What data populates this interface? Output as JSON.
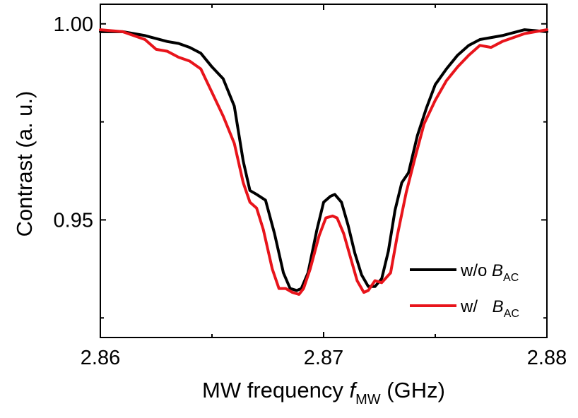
{
  "chart_data": {
    "type": "line",
    "xlabel": {
      "main": "MW frequency ",
      "var": "f",
      "sub": "MW",
      "unit": " (GHz)"
    },
    "ylabel": "Contrast (a. u.)",
    "xlim": [
      2.86,
      2.88
    ],
    "ylim": [
      0.92,
      1.005
    ],
    "xticks": [
      2.86,
      2.87,
      2.88
    ],
    "xtick_labels": [
      "2.86",
      "2.87",
      "2.88"
    ],
    "yticks": [
      0.95,
      1.0
    ],
    "ytick_labels": [
      "0.95",
      "1.00"
    ],
    "grid": false,
    "legend_position": "lower-right",
    "series": [
      {
        "name": "w/o B_AC",
        "legend_prefix": "w/o ",
        "legend_var": "B",
        "legend_sub": "AC",
        "color": "#000000",
        "x": [
          2.86,
          2.861,
          2.862,
          2.863,
          2.8635,
          2.864,
          2.8645,
          2.865,
          2.8655,
          2.866,
          2.8664,
          2.8667,
          2.867,
          2.8674,
          2.8678,
          2.8682,
          2.8685,
          2.8688,
          2.869,
          2.8693,
          2.8697,
          2.87,
          2.8703,
          2.8705,
          2.8708,
          2.8711,
          2.8714,
          2.8717,
          2.872,
          2.8723,
          2.8726,
          2.8729,
          2.8732,
          2.8735,
          2.8738,
          2.8742,
          2.8746,
          2.875,
          2.8755,
          2.876,
          2.8765,
          2.877,
          2.878,
          2.879,
          2.88
        ],
        "values": [
          0.998,
          0.998,
          0.997,
          0.9955,
          0.995,
          0.994,
          0.9925,
          0.989,
          0.986,
          0.979,
          0.965,
          0.9575,
          0.9565,
          0.955,
          0.9465,
          0.9365,
          0.9325,
          0.932,
          0.9325,
          0.9365,
          0.9475,
          0.9545,
          0.956,
          0.9565,
          0.9545,
          0.9485,
          0.9415,
          0.936,
          0.933,
          0.933,
          0.935,
          0.942,
          0.9525,
          0.9595,
          0.962,
          0.9715,
          0.9785,
          0.9845,
          0.9885,
          0.992,
          0.9945,
          0.996,
          0.997,
          0.9985,
          0.998
        ]
      },
      {
        "name": "w/ B_AC",
        "legend_prefix": "w/ ",
        "legend_var": "B",
        "legend_sub": "AC",
        "color": "#e8141b",
        "x": [
          2.86,
          2.861,
          2.862,
          2.8625,
          2.863,
          2.8635,
          2.864,
          2.8645,
          2.865,
          2.8655,
          2.866,
          2.8664,
          2.8667,
          2.867,
          2.8673,
          2.8677,
          2.868,
          2.8683,
          2.8686,
          2.8689,
          2.8691,
          2.8694,
          2.8698,
          2.8701,
          2.8704,
          2.8706,
          2.8709,
          2.8712,
          2.8715,
          2.8718,
          2.872,
          2.8723,
          2.8726,
          2.873,
          2.8733,
          2.8737,
          2.8741,
          2.8745,
          2.875,
          2.8755,
          2.876,
          2.8765,
          2.877,
          2.8775,
          2.878,
          2.879,
          2.88
        ],
        "values": [
          0.9985,
          0.998,
          0.996,
          0.9935,
          0.993,
          0.9915,
          0.9905,
          0.9885,
          0.9825,
          0.9765,
          0.9695,
          0.9595,
          0.9545,
          0.953,
          0.9475,
          0.9375,
          0.9325,
          0.9325,
          0.9315,
          0.931,
          0.9325,
          0.9375,
          0.946,
          0.9505,
          0.951,
          0.9505,
          0.9465,
          0.9405,
          0.9345,
          0.9315,
          0.932,
          0.9345,
          0.934,
          0.9365,
          0.946,
          0.957,
          0.966,
          0.9745,
          0.9805,
          0.9855,
          0.989,
          0.992,
          0.9945,
          0.994,
          0.9955,
          0.9975,
          0.9985
        ]
      }
    ]
  }
}
